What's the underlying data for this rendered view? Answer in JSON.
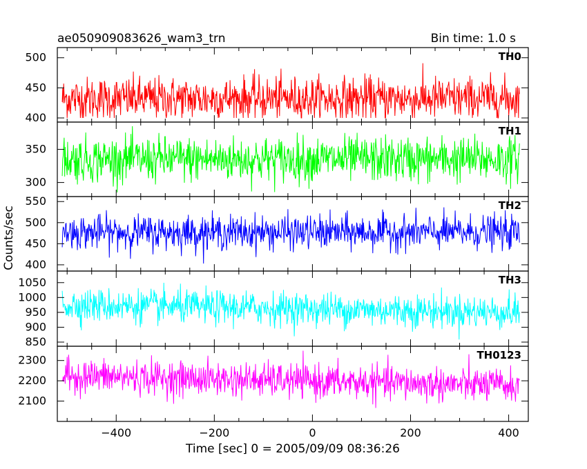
{
  "header": {
    "title": "ae050909083626_wam3_trn",
    "bin_time": "Bin time: 1.0 s"
  },
  "colors": {
    "TH0": "#ff0000",
    "TH1": "#00ff00",
    "TH2": "#0000ff",
    "TH3": "#00ffff",
    "TH0123": "#ff00ff"
  },
  "chart_data": {
    "type": "line",
    "xlabel": "Time [sec] 0 = 2005/09/09 08:36:26",
    "ylabel": "Counts/sec",
    "xlim": [
      -520,
      440
    ],
    "xdata_range": [
      -510,
      422
    ],
    "bin_time_s": 1.0,
    "x_ticks": [
      -400,
      -200,
      0,
      200,
      400
    ],
    "panels": [
      {
        "name": "TH0",
        "ylim": [
          400,
          510
        ],
        "y_ticks": [
          400,
          450,
          500
        ],
        "mean": 432,
        "noise_sd": 18,
        "min": 400,
        "max": 510
      },
      {
        "name": "TH1",
        "ylim": [
          285,
          385
        ],
        "y_ticks": [
          300,
          350
        ],
        "mean": 335,
        "noise_sd": 17,
        "min": 285,
        "max": 385
      },
      {
        "name": "TH2",
        "ylim": [
          395,
          552
        ],
        "y_ticks": [
          400,
          450,
          500,
          550
        ],
        "mean": 477,
        "noise_sd": 20,
        "min": 403,
        "max": 552
      },
      {
        "name": "TH3",
        "ylim": [
          850,
          1075
        ],
        "y_ticks": [
          850,
          900,
          950,
          1000,
          1050
        ],
        "mean": 975,
        "noise_sd": 28,
        "trend_end_mean": 950,
        "min": 858,
        "max": 1075
      },
      {
        "name": "TH0123",
        "ylim": [
          2020,
          2350
        ],
        "y_ticks": [
          2100,
          2200,
          2300
        ],
        "mean": 2225,
        "noise_sd": 42,
        "trend_end_mean": 2175,
        "min": 2030,
        "max": 2350
      }
    ]
  }
}
